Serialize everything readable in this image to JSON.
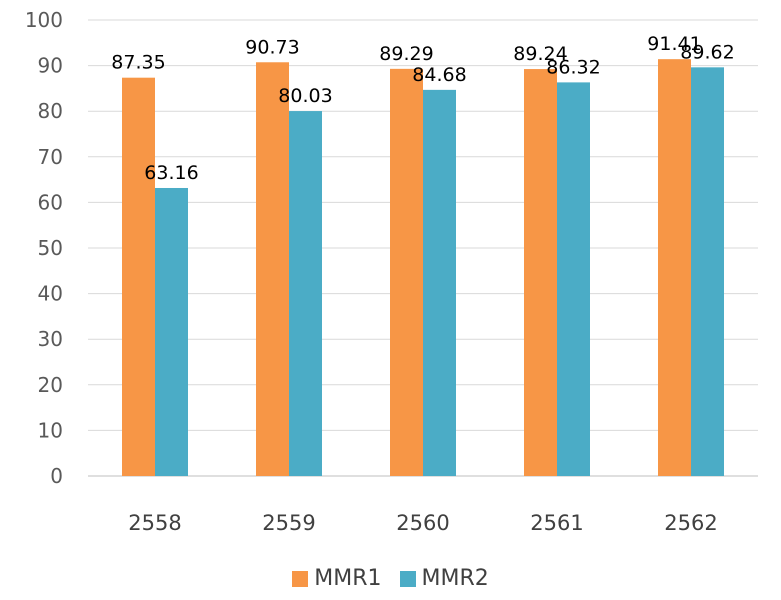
{
  "chart_data": {
    "type": "bar",
    "categories": [
      "2558",
      "2559",
      "2560",
      "2561",
      "2562"
    ],
    "series": [
      {
        "name": "MMR1",
        "color": "#F79646",
        "values": [
          87.35,
          90.73,
          89.29,
          89.24,
          91.41
        ]
      },
      {
        "name": "MMR2",
        "color": "#4BACC6",
        "values": [
          63.16,
          80.03,
          84.68,
          86.32,
          89.62
        ]
      }
    ],
    "data_labels": [
      [
        "87.35",
        "90.73",
        "89.29",
        "89.24",
        "91.41"
      ],
      [
        "63.16",
        "80.03",
        "84.68",
        "86.32",
        "89.62"
      ]
    ],
    "yticks": [
      "0",
      "10",
      "20",
      "30",
      "40",
      "50",
      "60",
      "70",
      "80",
      "90",
      "100"
    ],
    "ylim": [
      0,
      100
    ],
    "grid": true,
    "legend_position": "bottom"
  }
}
